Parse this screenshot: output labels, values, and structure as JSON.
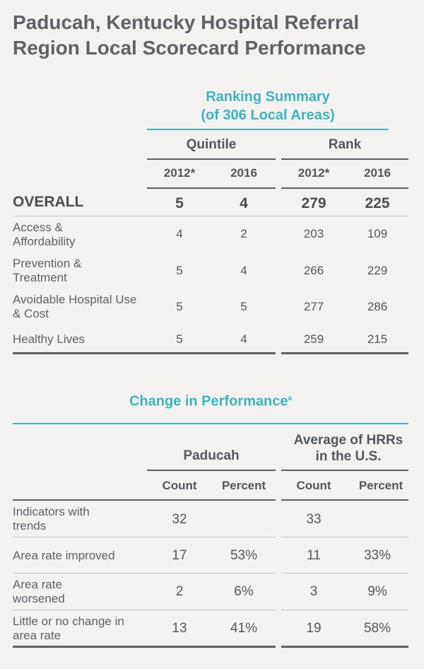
{
  "title": "Paducah, Kentucky Hospital Referral Region Local Scorecard Performance",
  "ranking": {
    "heading_line1": "Ranking Summary",
    "heading_line2": "(of 306 Local Areas)",
    "quintile_label": "Quintile",
    "rank_label": "Rank",
    "year_a": "2012*",
    "year_b": "2016",
    "rows": [
      {
        "label": "OVERALL",
        "q2012": "5",
        "q2016": "4",
        "r2012": "279",
        "r2016": "225"
      },
      {
        "label": "Access & Affordability",
        "q2012": "4",
        "q2016": "2",
        "r2012": "203",
        "r2016": "109"
      },
      {
        "label": "Prevention & Treatment",
        "q2012": "5",
        "q2016": "4",
        "r2012": "266",
        "r2016": "229"
      },
      {
        "label": "Avoidable Hospital Use  & Cost",
        "q2012": "5",
        "q2016": "5",
        "r2012": "277",
        "r2016": "286"
      },
      {
        "label": "Healthy Lives",
        "q2012": "5",
        "q2016": "4",
        "r2012": "259",
        "r2016": "215"
      }
    ]
  },
  "change": {
    "heading": "Change in Performance",
    "heading_sup": "a",
    "col_paducah": "Paducah",
    "col_avg_line1": "Average of HRRs",
    "col_avg_line2": "in the U.S.",
    "count_label": "Count",
    "percent_label": "Percent",
    "rows": [
      {
        "label": "Indicators with trends",
        "p_count": "32",
        "p_pct": "",
        "a_count": "33",
        "a_pct": ""
      },
      {
        "label": "Area rate improved",
        "p_count": "17",
        "p_pct": "53%",
        "a_count": "11",
        "a_pct": "33%"
      },
      {
        "label": "Area rate worsened",
        "p_count": "2",
        "p_pct": "6%",
        "a_count": "3",
        "a_pct": "9%"
      },
      {
        "label": "Little or no change in area rate",
        "p_count": "13",
        "p_pct": "41%",
        "a_count": "19",
        "a_pct": "58%"
      }
    ]
  }
}
